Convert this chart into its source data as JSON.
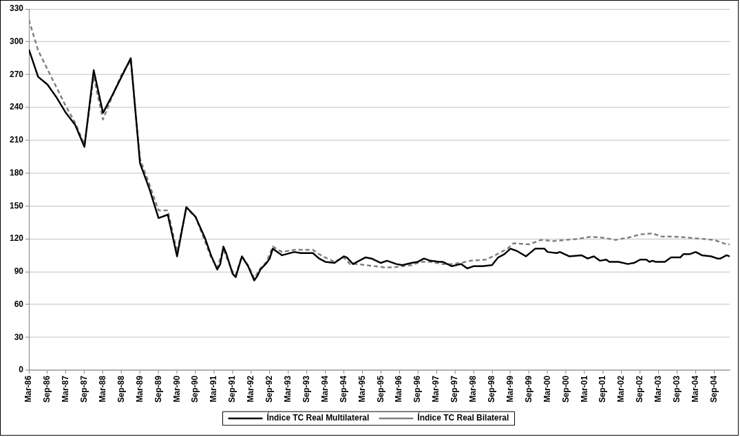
{
  "chart_data": {
    "type": "line",
    "legend": "bottom",
    "grid": "y",
    "marker": "none",
    "xlim": [
      "1986-03",
      "2005-02"
    ],
    "xticks": [
      {
        "value": "1986-03",
        "label": "Mar-86"
      },
      {
        "value": "1986-09",
        "label": "Sep-86"
      },
      {
        "value": "1987-03",
        "label": "Mar-87"
      },
      {
        "value": "1987-09",
        "label": "Sep-87"
      },
      {
        "value": "1988-03",
        "label": "Mar-88"
      },
      {
        "value": "1988-09",
        "label": "Sep-88"
      },
      {
        "value": "1989-03",
        "label": "Mar-89"
      },
      {
        "value": "1989-09",
        "label": "Sep-89"
      },
      {
        "value": "1990-03",
        "label": "Mar-90"
      },
      {
        "value": "1990-09",
        "label": "Sep-90"
      },
      {
        "value": "1991-03",
        "label": "Mar-91"
      },
      {
        "value": "1991-09",
        "label": "Sep-91"
      },
      {
        "value": "1992-03",
        "label": "Mar-92"
      },
      {
        "value": "1992-09",
        "label": "Sep-92"
      },
      {
        "value": "1993-03",
        "label": "Mar-93"
      },
      {
        "value": "1993-09",
        "label": "Sep-93"
      },
      {
        "value": "1994-03",
        "label": "Mar-94"
      },
      {
        "value": "1994-09",
        "label": "Sep-94"
      },
      {
        "value": "1995-03",
        "label": "Mar-95"
      },
      {
        "value": "1995-09",
        "label": "Sep-95"
      },
      {
        "value": "1996-03",
        "label": "Mar-96"
      },
      {
        "value": "1996-09",
        "label": "Sep-96"
      },
      {
        "value": "1997-03",
        "label": "Mar-97"
      },
      {
        "value": "1997-09",
        "label": "Sep-97"
      },
      {
        "value": "1998-03",
        "label": "Mar-98"
      },
      {
        "value": "1998-09",
        "label": "Sep-98"
      },
      {
        "value": "1999-03",
        "label": "Mar-99"
      },
      {
        "value": "1999-09",
        "label": "Sep-99"
      },
      {
        "value": "2000-03",
        "label": "Mar-00"
      },
      {
        "value": "2000-09",
        "label": "Sep-00"
      },
      {
        "value": "2001-03",
        "label": "Mar-01"
      },
      {
        "value": "2001-09",
        "label": "Sep-01"
      },
      {
        "value": "2002-03",
        "label": "Mar-02"
      },
      {
        "value": "2002-09",
        "label": "Sep-02"
      },
      {
        "value": "2003-03",
        "label": "Mar-03"
      },
      {
        "value": "2003-09",
        "label": "Sep-03"
      },
      {
        "value": "2004-03",
        "label": "Mar-04"
      },
      {
        "value": "2004-09",
        "label": "Sep-04"
      }
    ],
    "ylim": [
      0,
      330
    ],
    "yticks": [
      0,
      30,
      60,
      90,
      120,
      150,
      180,
      210,
      240,
      270,
      300,
      330
    ],
    "series": [
      {
        "name": "Índice TC Real Multilateral",
        "color": "#000000",
        "line_style": "solid",
        "x": [
          "1986-03",
          "1986-06",
          "1986-09",
          "1986-12",
          "1987-03",
          "1987-06",
          "1987-09",
          "1987-12",
          "1988-03",
          "1988-06",
          "1988-09",
          "1988-12",
          "1989-03",
          "1989-06",
          "1989-09",
          "1989-12",
          "1990-03",
          "1990-06",
          "1990-09",
          "1990-12",
          "1991-02",
          "1991-04",
          "1991-05",
          "1991-06",
          "1991-07",
          "1991-09",
          "1991-10",
          "1991-12",
          "1992-02",
          "1992-04",
          "1992-05",
          "1992-06",
          "1992-08",
          "1992-09",
          "1992-10",
          "1993-01",
          "1993-05",
          "1993-07",
          "1993-11",
          "1994-01",
          "1994-03",
          "1994-06",
          "1994-09",
          "1994-10",
          "1994-12",
          "1995-04",
          "1995-06",
          "1995-09",
          "1995-11",
          "1996-02",
          "1996-04",
          "1996-07",
          "1996-09",
          "1996-11",
          "1997-01",
          "1997-04",
          "1997-05",
          "1997-08",
          "1997-11",
          "1998-01",
          "1998-03",
          "1998-06",
          "1998-09",
          "1998-11",
          "1999-01",
          "1999-03",
          "1999-05",
          "1999-08",
          "1999-11",
          "2000-02",
          "2000-03",
          "2000-06",
          "2000-07",
          "2000-10",
          "2001-02",
          "2001-04",
          "2001-06",
          "2001-08",
          "2001-10",
          "2001-11",
          "2002-02",
          "2002-05",
          "2002-07",
          "2002-09",
          "2002-11",
          "2002-12",
          "2003-01",
          "2003-02",
          "2003-05",
          "2003-07",
          "2003-10",
          "2003-11",
          "2004-01",
          "2004-03",
          "2004-05",
          "2004-08",
          "2004-10",
          "2004-11",
          "2005-01",
          "2005-02"
        ],
        "values": [
          293,
          268,
          261,
          249,
          235,
          224,
          204,
          274,
          235,
          251,
          268,
          285,
          189,
          166,
          139,
          142,
          104,
          149,
          140,
          121,
          105,
          92,
          97,
          113,
          106,
          88,
          85,
          104,
          95,
          82,
          86,
          92,
          98,
          102,
          111,
          105,
          108,
          107,
          107,
          102,
          99,
          98,
          104,
          103,
          97,
          103,
          102,
          98,
          100,
          97,
          96,
          98,
          99,
          102,
          100,
          99,
          99,
          95,
          97,
          93,
          95,
          95,
          96,
          103,
          106,
          111,
          109,
          104,
          111,
          111,
          108,
          107,
          108,
          104,
          105,
          102,
          104,
          100,
          101,
          99,
          99,
          97,
          98,
          101,
          101,
          99,
          100,
          99,
          99,
          103,
          103,
          106,
          106,
          108,
          105,
          104,
          102,
          102,
          105,
          104
        ]
      },
      {
        "name": "Índice TC Real Bilateral",
        "color": "#808080",
        "line_style": "dashed",
        "x": [
          "1986-03",
          "1986-06",
          "1986-09",
          "1986-12",
          "1987-03",
          "1987-06",
          "1987-09",
          "1987-12",
          "1988-03",
          "1988-06",
          "1988-09",
          "1988-12",
          "1989-03",
          "1989-06",
          "1989-09",
          "1989-12",
          "1990-03",
          "1990-06",
          "1990-09",
          "1990-12",
          "1991-02",
          "1991-04",
          "1991-06",
          "1991-09",
          "1991-10",
          "1991-12",
          "1992-02",
          "1992-04",
          "1992-06",
          "1992-08",
          "1992-10",
          "1993-01",
          "1993-05",
          "1993-07",
          "1993-11",
          "1994-01",
          "1994-03",
          "1994-06",
          "1994-09",
          "1994-11",
          "1995-01",
          "1995-04",
          "1995-07",
          "1995-10",
          "1996-01",
          "1996-04",
          "1996-07",
          "1996-10",
          "1997-01",
          "1997-05",
          "1997-08",
          "1997-11",
          "1998-02",
          "1998-07",
          "1998-10",
          "1999-02",
          "1999-04",
          "1999-09",
          "2000-01",
          "2000-05",
          "2000-09",
          "2001-01",
          "2001-05",
          "2001-09",
          "2002-01",
          "2002-05",
          "2002-09",
          "2003-01",
          "2003-04",
          "2003-08",
          "2004-01",
          "2004-05",
          "2004-09",
          "2005-01",
          "2005-02"
        ],
        "values": [
          320,
          292,
          275,
          258,
          241,
          226,
          206,
          268,
          229,
          250,
          270,
          283,
          193,
          170,
          146,
          146,
          108,
          148,
          140,
          118,
          103,
          94,
          110,
          90,
          87,
          104,
          96,
          84,
          93,
          99,
          113,
          108,
          110,
          110,
          110,
          106,
          103,
          99,
          103,
          97,
          97,
          96,
          95,
          94,
          94,
          95,
          96,
          99,
          99,
          97,
          97,
          98,
          100,
          101,
          105,
          111,
          116,
          115,
          119,
          118,
          119,
          120,
          122,
          121,
          119,
          121,
          124,
          125,
          122,
          122,
          121,
          120,
          119,
          115,
          115
        ]
      }
    ]
  }
}
